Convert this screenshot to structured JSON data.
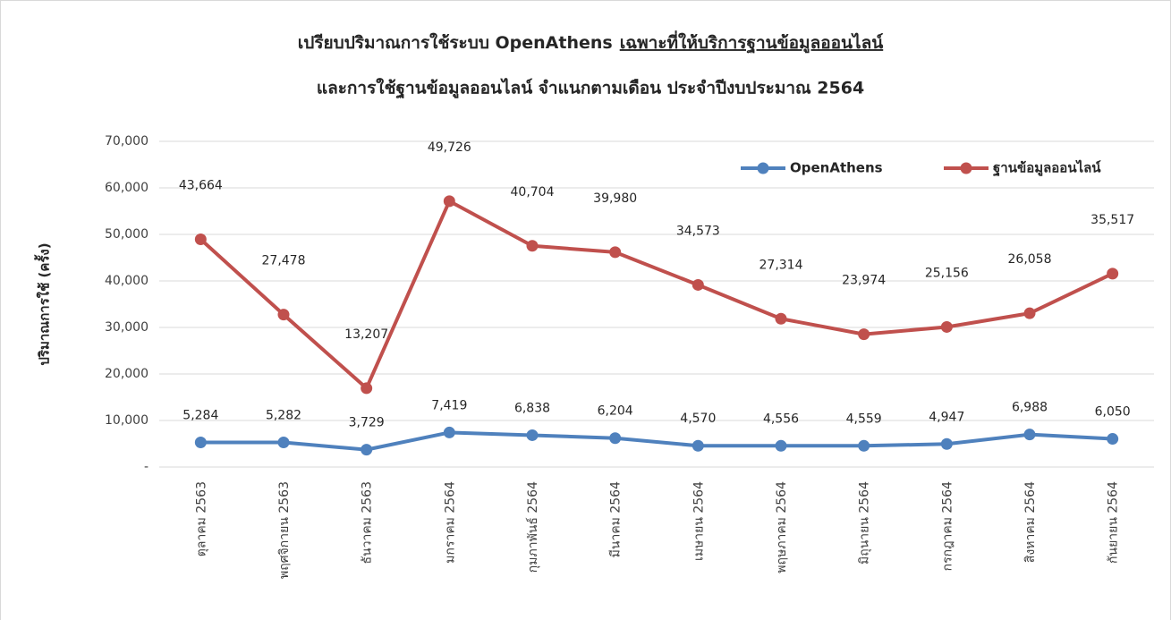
{
  "chart_data": {
    "type": "stacked-line",
    "title": [
      "เปรียบปริมาณการใช้ระบบ OpenAthens",
      "เฉพาะที่ให้บริการฐานข้อมูลออนไลน์",
      "และการใช้ฐานข้อมูลออนไลน์ จำแนกตามเดือน ประจำปีงบประมาณ 2564"
    ],
    "y_label": "ปริมาณการใช้ (ครั้ง)",
    "categories": [
      "ตุลาคม 2563",
      "พฤศจิกายน 2563",
      "ธันวาคม 2563",
      "มกราคม 2564",
      "กุมภาพันธ์ 2564",
      "มีนาคม 2564",
      "เมษายน 2564",
      "พฤษภาคม 2564",
      "มิถุนายน 2564",
      "กรกฎาคม 2564",
      "สิงหาคม 2564",
      "กันยายน 2564"
    ],
    "series": [
      {
        "name": "OpenAthens",
        "color": "#4f81bd",
        "values": [
          5284,
          5282,
          3729,
          7419,
          6838,
          6204,
          4570,
          4556,
          4559,
          4947,
          6988,
          6050
        ],
        "value_labels": [
          "5,284",
          "5,282",
          "3,729",
          "7,419",
          "6,838",
          "6,204",
          "4,570",
          "4,556",
          "4,559",
          "4,947",
          "6,988",
          "6,050"
        ]
      },
      {
        "name": "ฐานข้อมูลออนไลน์",
        "color": "#c0504d",
        "values": [
          43664,
          27478,
          13207,
          49726,
          40704,
          39980,
          34573,
          27314,
          23974,
          25156,
          26058,
          35517
        ],
        "value_labels": [
          "43,664",
          "27,478",
          "13,207",
          "49,726",
          "40,704",
          "39,980",
          "34,573",
          "27,314",
          "23,974",
          "25,156",
          "26,058",
          "35,517"
        ]
      }
    ],
    "ylim": [
      0,
      70000
    ],
    "yticks": [
      {
        "value": 0,
        "label": "-"
      },
      {
        "value": 10000,
        "label": "10,000"
      },
      {
        "value": 20000,
        "label": "20,000"
      },
      {
        "value": 30000,
        "label": "30,000"
      },
      {
        "value": 40000,
        "label": "40,000"
      },
      {
        "value": 50000,
        "label": "50,000"
      },
      {
        "value": 60000,
        "label": "60,000"
      },
      {
        "value": 70000,
        "label": "70,000"
      }
    ],
    "grid": true,
    "legend": "top-right"
  }
}
